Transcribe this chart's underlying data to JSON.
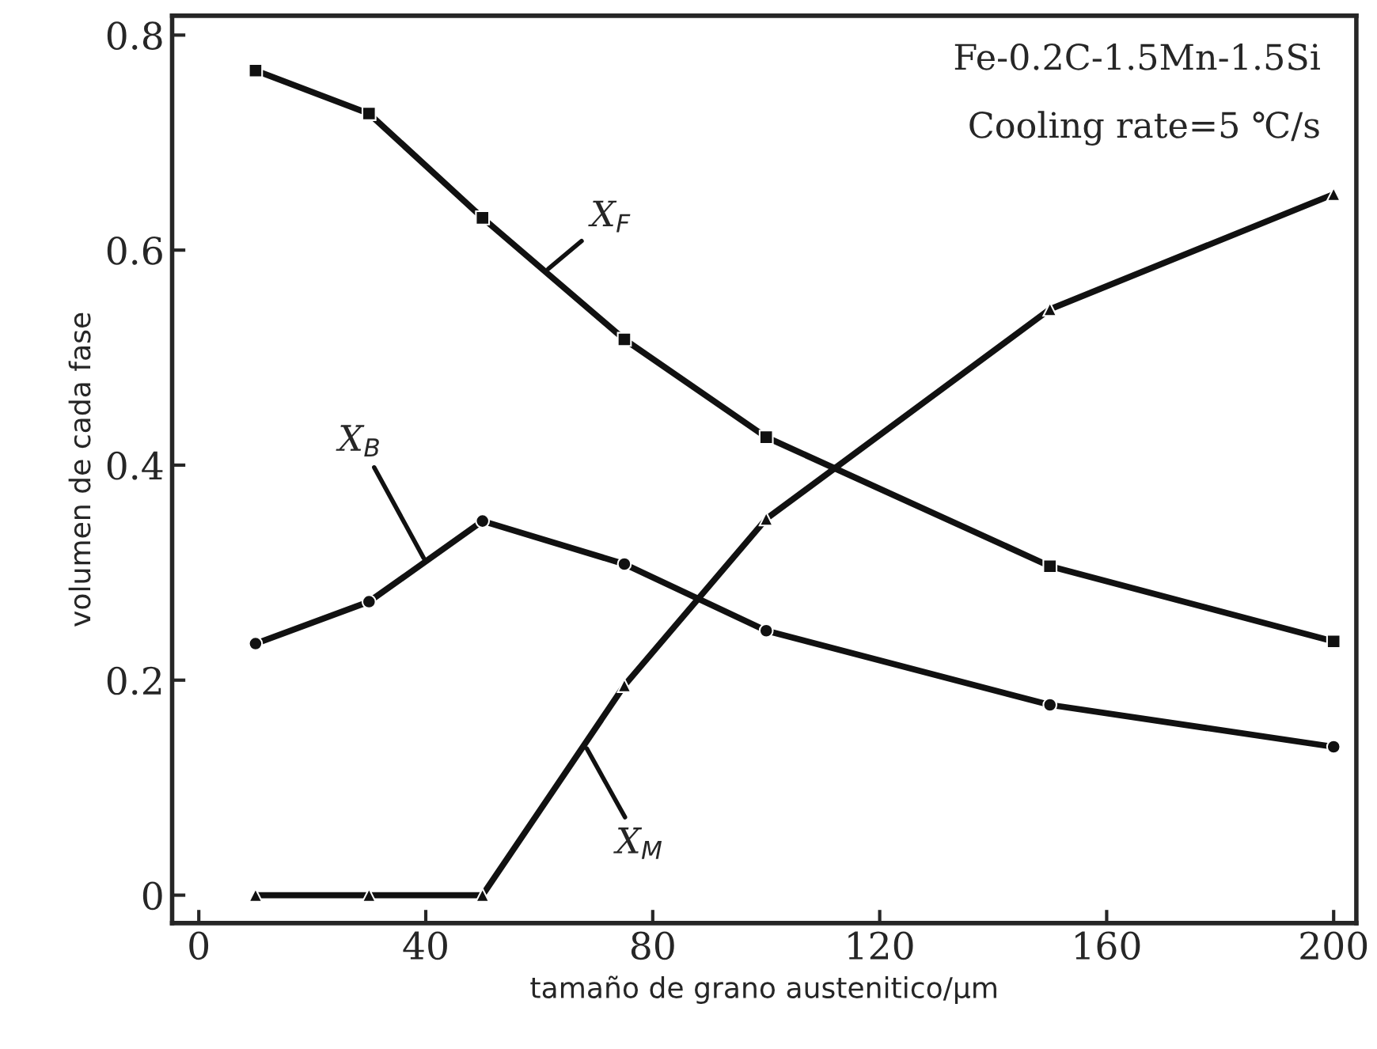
{
  "chart_data": {
    "type": "line",
    "xlabel": "tamaño de grano austenitico/µm",
    "ylabel": "volumen de cada fase",
    "x": [
      10,
      30,
      50,
      75,
      100,
      150,
      200
    ],
    "series": [
      {
        "values": [
          0.767,
          0.727,
          0.63,
          0.517,
          0.426,
          0.306,
          0.236
        ],
        "color": "#111111",
        "marker": "square"
      },
      {
        "values": [
          0.234,
          0.273,
          0.348,
          0.308,
          0.246,
          0.177,
          0.138
        ],
        "color": "#111111",
        "marker": "circle"
      },
      {
        "values": [
          0,
          0,
          0,
          0.195,
          0.35,
          0.545,
          0.652
        ],
        "color": "#111111",
        "marker": "triangle"
      }
    ],
    "annotations": [
      {
        "text": "X$_{F}$",
        "x": 61,
        "y": 0.58
      },
      {
        "text": "X$_{B}$",
        "x": 40,
        "y": 0.31
      },
      {
        "text": "X$_{M}$",
        "x": 68,
        "y": 0.14
      },
      "Fe-0.2C-1.5Mn-1.5Si",
      "Cooling rate=5 ℃/s"
    ],
    "xlim": [
      -4.7,
      204
    ],
    "ylim": [
      -0.026,
      0.818
    ],
    "xticks": [
      0,
      40,
      80,
      120,
      160,
      200
    ],
    "yticks": [
      {
        "value": 0,
        "label": "0"
      },
      0.2,
      0.4,
      0.6,
      0.8
    ],
    "grid": false,
    "legend": false,
    "line_style": "solid"
  }
}
